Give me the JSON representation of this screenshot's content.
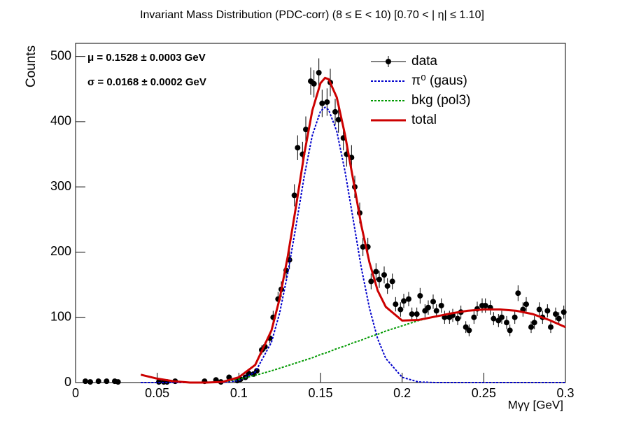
{
  "chart_data": {
    "type": "scatter",
    "title": "Invariant Mass Distribution (PDC-corr)   (8    ≤ E < 10)   [0.70 < | η| ≤ 1.10]",
    "x_label": "Mγγ  [GeV]",
    "y_label": "Counts",
    "annotations": [
      "μ = 0.1528  ± 0.0003 GeV",
      "σ = 0.0168  ± 0.0002 GeV"
    ],
    "xlim": [
      0,
      0.3
    ],
    "xticks": [
      0,
      0.05,
      0.1,
      0.15,
      0.2,
      0.25,
      0.3
    ],
    "ylim": [
      0,
      520
    ],
    "yticks": [
      0,
      100,
      200,
      300,
      400,
      500
    ],
    "legend": "top-right",
    "series": [
      {
        "name": "data",
        "type": "scatter",
        "color": "#000000",
        "x": [
          0.006,
          0.009,
          0.014,
          0.019,
          0.024,
          0.026,
          0.051,
          0.054,
          0.056,
          0.061,
          0.079,
          0.086,
          0.089,
          0.094,
          0.099,
          0.101,
          0.104,
          0.106,
          0.109,
          0.111,
          0.114,
          0.116,
          0.119,
          0.121,
          0.124,
          0.126,
          0.129,
          0.131,
          0.134,
          0.136,
          0.139,
          0.141,
          0.144,
          0.146,
          0.149,
          0.151,
          0.154,
          0.156,
          0.159,
          0.161,
          0.164,
          0.166,
          0.169,
          0.171,
          0.174,
          0.176,
          0.179,
          0.181,
          0.184,
          0.186,
          0.189,
          0.191,
          0.194,
          0.196,
          0.199,
          0.201,
          0.204,
          0.206,
          0.209,
          0.211,
          0.214,
          0.216,
          0.219,
          0.221,
          0.224,
          0.226,
          0.229,
          0.231,
          0.234,
          0.236,
          0.239,
          0.241,
          0.244,
          0.246,
          0.249,
          0.251,
          0.254,
          0.256,
          0.259,
          0.261,
          0.264,
          0.266,
          0.269,
          0.271,
          0.274,
          0.276,
          0.279,
          0.281,
          0.284,
          0.286,
          0.289,
          0.291,
          0.294,
          0.296,
          0.299
        ],
        "values": [
          2,
          1,
          2,
          2,
          2,
          1,
          1,
          1,
          1,
          2,
          2,
          4,
          1,
          8,
          3,
          5,
          8,
          14,
          13,
          18,
          50,
          55,
          68,
          100,
          128,
          143,
          172,
          188,
          287,
          360,
          350,
          388,
          462,
          458,
          475,
          428,
          430,
          460,
          415,
          403,
          375,
          350,
          345,
          300,
          260,
          208,
          208,
          155,
          170,
          158,
          165,
          148,
          155,
          120,
          112,
          125,
          128,
          105,
          105,
          133,
          110,
          115,
          124,
          110,
          118,
          100,
          100,
          103,
          98,
          108,
          85,
          80,
          100,
          113,
          118,
          118,
          115,
          98,
          95,
          100,
          92,
          80,
          100,
          137,
          112,
          120,
          85,
          92,
          112,
          100,
          110,
          85,
          105,
          98,
          108
        ],
        "errors": [
          1,
          1,
          1,
          1,
          1,
          1,
          1,
          1,
          1,
          1,
          1,
          2,
          1,
          3,
          2,
          2,
          3,
          4,
          4,
          4,
          7,
          7,
          8,
          10,
          11,
          12,
          13,
          14,
          17,
          19,
          19,
          20,
          21,
          21,
          22,
          21,
          21,
          21,
          20,
          20,
          19,
          19,
          19,
          17,
          16,
          14,
          14,
          12,
          13,
          13,
          13,
          12,
          12,
          11,
          11,
          11,
          11,
          10,
          10,
          12,
          10,
          11,
          11,
          10,
          11,
          10,
          10,
          10,
          10,
          10,
          9,
          9,
          10,
          11,
          11,
          11,
          11,
          10,
          10,
          10,
          10,
          9,
          10,
          12,
          11,
          11,
          9,
          10,
          11,
          10,
          10,
          9,
          10,
          10,
          10
        ]
      },
      {
        "name": "π⁰ (gaus)",
        "type": "line",
        "color": "#0000cc",
        "dash": "dotted",
        "x": [
          0.04,
          0.05,
          0.06,
          0.07,
          0.08,
          0.09,
          0.1,
          0.11,
          0.12,
          0.125,
          0.13,
          0.135,
          0.14,
          0.145,
          0.15,
          0.1528,
          0.155,
          0.16,
          0.165,
          0.17,
          0.175,
          0.18,
          0.185,
          0.19,
          0.2,
          0.21,
          0.22,
          0.23,
          0.24,
          0.25,
          0.26,
          0.27,
          0.28,
          0.29,
          0.3
        ],
        "values": [
          0,
          0,
          0,
          0,
          0,
          0,
          3,
          16,
          62,
          107,
          168,
          240,
          316,
          379,
          416,
          422,
          418,
          385,
          324,
          250,
          176,
          114,
          67,
          37,
          8,
          1,
          0,
          0,
          0,
          0,
          0,
          0,
          0,
          0,
          0
        ]
      },
      {
        "name": "bkg (pol3)",
        "type": "line",
        "color": "#009900",
        "dash": "dotted",
        "x": [
          0.04,
          0.05,
          0.06,
          0.07,
          0.08,
          0.09,
          0.1,
          0.11,
          0.12,
          0.125,
          0.13,
          0.135,
          0.14,
          0.145,
          0.15,
          0.1528,
          0.155,
          0.16,
          0.165,
          0.17,
          0.175,
          0.18,
          0.185,
          0.19,
          0.2,
          0.21,
          0.22,
          0.23,
          0.24,
          0.25,
          0.26,
          0.27,
          0.28,
          0.29,
          0.3
        ],
        "values": [
          12,
          6,
          2,
          0,
          0,
          1,
          5,
          11,
          18,
          22,
          26,
          30,
          34,
          38,
          43,
          45,
          47,
          52,
          56,
          61,
          65,
          70,
          74,
          79,
          87,
          95,
          101,
          106,
          110,
          112,
          112,
          110,
          105,
          96,
          85
        ]
      },
      {
        "name": "total",
        "type": "line",
        "color": "#cc0000",
        "dash": "solid",
        "x": [
          0.04,
          0.05,
          0.06,
          0.07,
          0.08,
          0.09,
          0.1,
          0.11,
          0.12,
          0.125,
          0.13,
          0.135,
          0.14,
          0.145,
          0.15,
          0.1528,
          0.155,
          0.16,
          0.165,
          0.17,
          0.175,
          0.18,
          0.185,
          0.19,
          0.2,
          0.21,
          0.22,
          0.23,
          0.24,
          0.25,
          0.26,
          0.27,
          0.28,
          0.29,
          0.3
        ],
        "values": [
          12,
          6,
          2,
          0,
          0,
          1,
          8,
          27,
          80,
          129,
          194,
          270,
          350,
          417,
          459,
          467,
          465,
          437,
          380,
          311,
          241,
          184,
          141,
          116,
          95,
          96,
          101,
          106,
          110,
          112,
          112,
          110,
          105,
          96,
          85
        ]
      }
    ]
  }
}
